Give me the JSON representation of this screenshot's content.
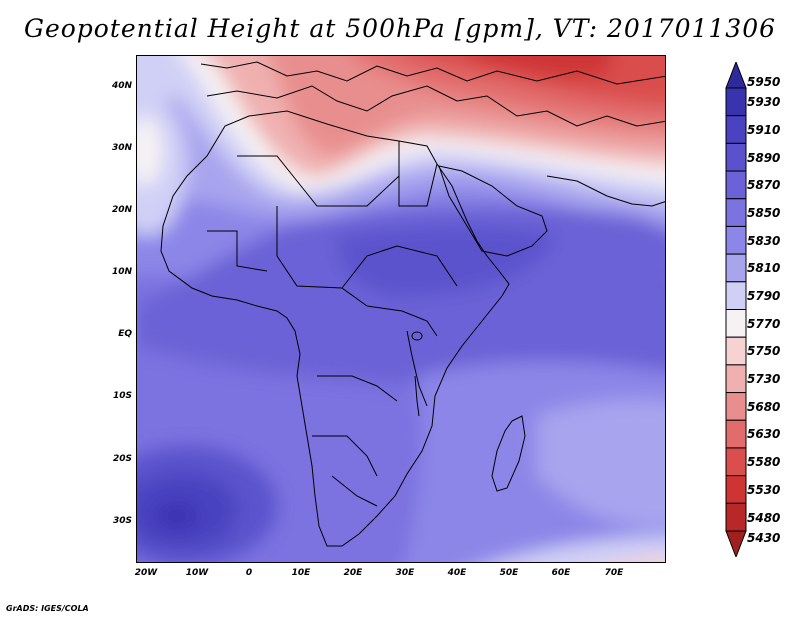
{
  "title": "Geopotential Height at 500hPa [gpm], VT: 2017011306",
  "credit": "GrADS: IGES/COLA",
  "lat_labels": [
    "40N",
    "30N",
    "20N",
    "10N",
    "EQ",
    "10S",
    "20S",
    "30S"
  ],
  "lon_labels": [
    "20W",
    "10W",
    "0",
    "10E",
    "20E",
    "30E",
    "40E",
    "50E",
    "60E",
    "70E"
  ],
  "colorbar": {
    "levels": [
      "5950",
      "5930",
      "5910",
      "5890",
      "5870",
      "5850",
      "5830",
      "5810",
      "5790",
      "5770",
      "5750",
      "5730",
      "5680",
      "5630",
      "5580",
      "5530",
      "5480",
      "5430"
    ],
    "colors": [
      "#2e2a9e",
      "#3a33b0",
      "#4a42c0",
      "#5a52cc",
      "#6a62d6",
      "#7c72e0",
      "#8c86e8",
      "#a8a4ee",
      "#d0d0f6",
      "#f6f2f4",
      "#f6d2d2",
      "#f0b0b0",
      "#e88e8e",
      "#e26c6c",
      "#da4e4e",
      "#ce3434",
      "#b82828",
      "#a02020"
    ]
  }
}
